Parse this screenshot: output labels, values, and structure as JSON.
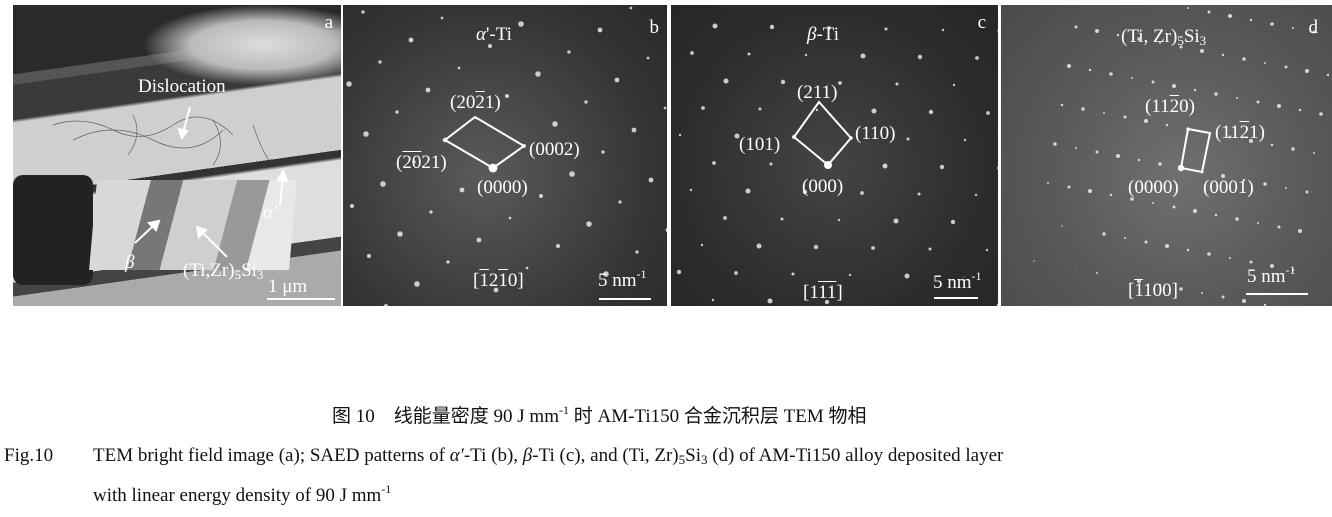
{
  "panels": {
    "a": {
      "letter": "a",
      "dislocation": "Dislocation",
      "alpha_prime": "α′",
      "beta": "β",
      "phase_pre": "(Ti,Zr)",
      "phase_sub1": "5",
      "phase_mid": "Si",
      "phase_sub2": "3",
      "scale": "1 μm"
    },
    "b": {
      "letter": "b",
      "title_greek": "α",
      "title_rest": "'-Ti",
      "top": [
        "(20",
        "2",
        "1)"
      ],
      "left": [
        "(",
        "20",
        "21)"
      ],
      "right": "(0002)",
      "bottom": "(0000)",
      "zone": [
        "[",
        "1",
        "2",
        "1",
        "0]"
      ],
      "scale": "5 nm",
      "scale_sup": "-1"
    },
    "c": {
      "letter": "c",
      "title_greek": "β",
      "title_rest": "-Ti",
      "top": "(211)",
      "left": "(101)",
      "right": "(110)",
      "bottom": "(000)",
      "zone": [
        "[1",
        "1",
        "1",
        "]"
      ],
      "scale": "5 nm",
      "scale_sup": "-1"
    },
    "d": {
      "letter": "d",
      "title_pre": "(Ti, Zr)",
      "title_sub1": "5",
      "title_mid": "Si",
      "title_sub2": "3",
      "top": [
        "(11",
        "2",
        "0)"
      ],
      "right": [
        "(11",
        "2",
        "1)"
      ],
      "bottom_left": "(0000)",
      "bottom_right": "(0001)",
      "zone": [
        "[",
        "1",
        "100]"
      ],
      "scale": "5 nm",
      "scale_sup": "-1"
    }
  },
  "caption": {
    "cn_label": "图 10",
    "cn_text": "线能量密度 90 J mm",
    "cn_sup": "-1",
    "cn_rest": " 时 AM-Ti150 合金沉积层 TEM 物相",
    "en_label": "Fig.10",
    "en_1": "TEM bright field image (a); SAED patterns of ",
    "en_alpha": "α′",
    "en_2": "-Ti (b), ",
    "en_beta": "β",
    "en_3": "-Ti (c), and (Ti, Zr)",
    "en_sub1": "5",
    "en_4": "Si",
    "en_sub2": "3",
    "en_5": " (d) of AM-Ti150 alloy deposited layer",
    "en_line2": "with linear energy density of 90 J mm",
    "en_sup": "-1"
  }
}
